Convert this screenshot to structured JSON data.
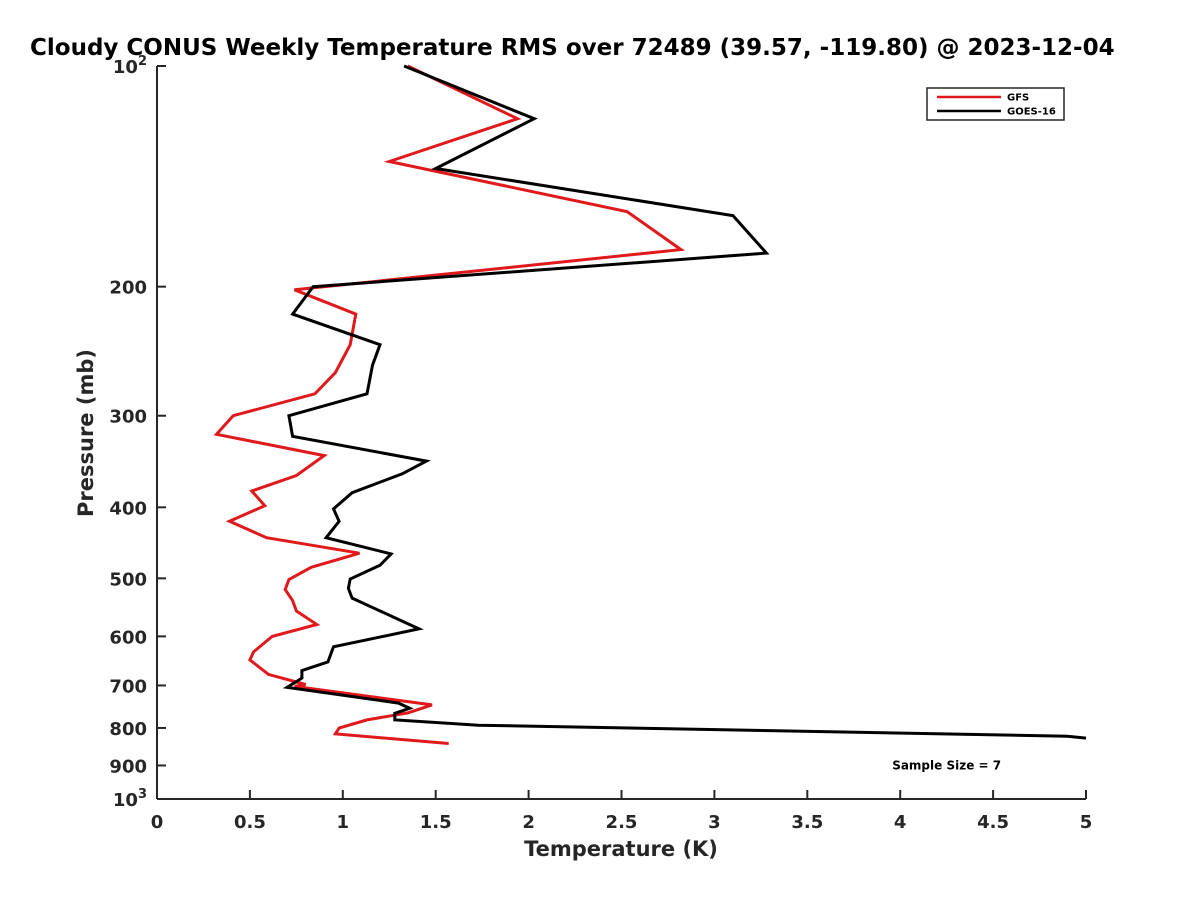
{
  "chart_data": {
    "type": "line",
    "title": "Cloudy CONUS Weekly Temperature RMS over 72489 (39.57, -119.80) @ 2023-12-04",
    "xlabel": "Temperature (K)",
    "ylabel": "Pressure (mb)",
    "xlim": [
      0,
      5
    ],
    "ylim": [
      100,
      1000
    ],
    "y_scale": "log",
    "y_reversed": true,
    "grid": false,
    "legend_position": "top-right",
    "x_ticks": [
      0,
      0.5,
      1,
      1.5,
      2,
      2.5,
      3,
      3.5,
      4,
      4.5,
      5
    ],
    "x_tick_labels": [
      "0",
      "0.5",
      "1",
      "1.5",
      "2",
      "2.5",
      "3",
      "3.5",
      "4",
      "4.5",
      "5"
    ],
    "y_ticks": [
      {
        "value": 100,
        "base": "10",
        "exp": "2"
      },
      {
        "value": 200,
        "label": "200"
      },
      {
        "value": 300,
        "label": "300"
      },
      {
        "value": 400,
        "label": "400"
      },
      {
        "value": 500,
        "label": "500"
      },
      {
        "value": 600,
        "label": "600"
      },
      {
        "value": 700,
        "label": "700"
      },
      {
        "value": 800,
        "label": "800"
      },
      {
        "value": 900,
        "label": "900"
      },
      {
        "value": 1000,
        "base": "10",
        "exp": "3"
      }
    ],
    "series": [
      {
        "name": "GFS",
        "color": "#e0191c",
        "points": [
          [
            1.35,
            100
          ],
          [
            1.94,
            118
          ],
          [
            1.25,
            135
          ],
          [
            2.53,
            158
          ],
          [
            2.82,
            178
          ],
          [
            0.74,
            202
          ],
          [
            1.07,
            218
          ],
          [
            1.04,
            240
          ],
          [
            0.96,
            262
          ],
          [
            0.85,
            280
          ],
          [
            0.41,
            300
          ],
          [
            0.32,
            318
          ],
          [
            0.9,
            340
          ],
          [
            0.75,
            362
          ],
          [
            0.51,
            380
          ],
          [
            0.58,
            398
          ],
          [
            0.39,
            418
          ],
          [
            0.59,
            440
          ],
          [
            1.09,
            462
          ],
          [
            0.83,
            483
          ],
          [
            0.71,
            502
          ],
          [
            0.69,
            518
          ],
          [
            0.73,
            536
          ],
          [
            0.75,
            554
          ],
          [
            0.86,
            578
          ],
          [
            0.62,
            600
          ],
          [
            0.52,
            630
          ],
          [
            0.5,
            646
          ],
          [
            0.6,
            676
          ],
          [
            0.8,
            698
          ],
          [
            0.74,
            702
          ],
          [
            1.48,
            744
          ],
          [
            1.35,
            763
          ],
          [
            1.13,
            780
          ],
          [
            0.98,
            800
          ],
          [
            0.96,
            815
          ],
          [
            1.57,
            840
          ]
        ]
      },
      {
        "name": "GOES-16",
        "color": "#000000",
        "points": [
          [
            1.33,
            100
          ],
          [
            2.03,
            118
          ],
          [
            1.5,
            138
          ],
          [
            3.1,
            160
          ],
          [
            3.28,
            180
          ],
          [
            0.84,
            200
          ],
          [
            0.73,
            218
          ],
          [
            1.2,
            240
          ],
          [
            1.16,
            256
          ],
          [
            1.13,
            280
          ],
          [
            0.71,
            300
          ],
          [
            0.73,
            320
          ],
          [
            1.45,
            346
          ],
          [
            1.32,
            360
          ],
          [
            1.05,
            382
          ],
          [
            0.95,
            402
          ],
          [
            0.98,
            418
          ],
          [
            0.91,
            440
          ],
          [
            1.26,
            463
          ],
          [
            1.2,
            480
          ],
          [
            1.04,
            501
          ],
          [
            1.03,
            516
          ],
          [
            1.05,
            532
          ],
          [
            1.41,
            586
          ],
          [
            0.95,
            620
          ],
          [
            0.92,
            650
          ],
          [
            0.78,
            668
          ],
          [
            0.78,
            684
          ],
          [
            0.7,
            704
          ],
          [
            1.3,
            740
          ],
          [
            1.36,
            752
          ],
          [
            1.28,
            764
          ],
          [
            1.28,
            780
          ],
          [
            1.73,
            793
          ],
          [
            4.9,
            821
          ],
          [
            5.0,
            826
          ]
        ]
      }
    ],
    "annotations": [
      {
        "text": "Sample Size = 7",
        "x": 4.25,
        "y": 900
      }
    ]
  }
}
